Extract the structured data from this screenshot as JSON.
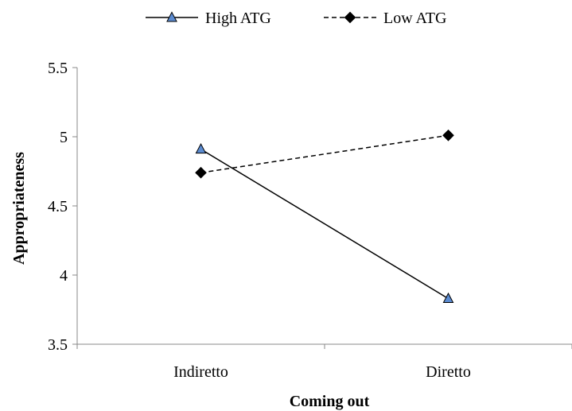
{
  "chart_data": {
    "type": "line",
    "categories": [
      "Indiretto",
      "Diretto"
    ],
    "series": [
      {
        "name": "High ATG",
        "values": [
          4.91,
          3.83
        ],
        "line_style": "solid",
        "marker": "triangle",
        "marker_color": "#5b8bd0"
      },
      {
        "name": "Low ATG",
        "values": [
          4.74,
          5.01
        ],
        "line_style": "dashed",
        "marker": "diamond",
        "marker_color": "#000000"
      }
    ],
    "xlabel": "Coming out",
    "ylabel": "Appropriateness",
    "ylim": [
      3.5,
      5.5
    ],
    "yticks": [
      "3.5",
      "4",
      "4.5",
      "5",
      "5.5"
    ],
    "grid": false,
    "legend_position": "top"
  }
}
